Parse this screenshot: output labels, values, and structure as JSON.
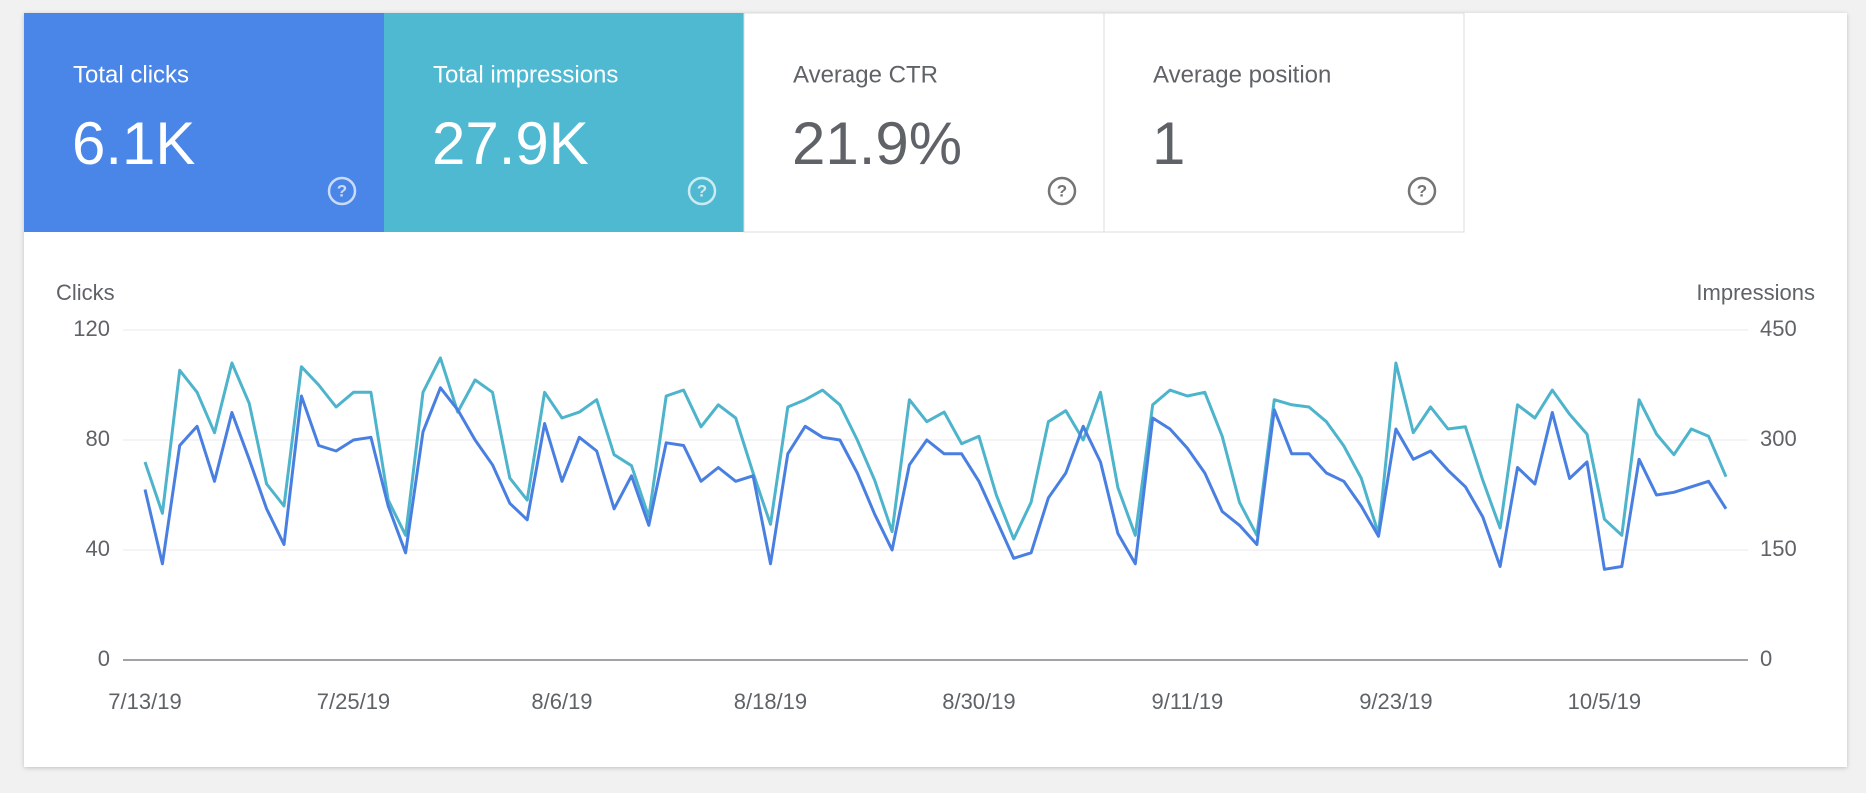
{
  "cards": [
    {
      "label": "Total clicks",
      "value": "6.1K"
    },
    {
      "label": "Total impressions",
      "value": "27.9K"
    },
    {
      "label": "Average CTR",
      "value": "21.9%"
    },
    {
      "label": "Average position",
      "value": "1"
    }
  ],
  "chart_data": {
    "type": "line",
    "categories": [
      "7/13/19",
      null,
      null,
      null,
      null,
      null,
      null,
      null,
      null,
      null,
      null,
      null,
      "7/25/19",
      null,
      null,
      null,
      null,
      null,
      null,
      null,
      null,
      null,
      null,
      null,
      "8/6/19",
      null,
      null,
      null,
      null,
      null,
      null,
      null,
      null,
      null,
      null,
      null,
      "8/18/19",
      null,
      null,
      null,
      null,
      null,
      null,
      null,
      null,
      null,
      null,
      null,
      "8/30/19",
      null,
      null,
      null,
      null,
      null,
      null,
      null,
      null,
      null,
      null,
      null,
      "9/11/19",
      null,
      null,
      null,
      null,
      null,
      null,
      null,
      null,
      null,
      null,
      null,
      "9/23/19",
      null,
      null,
      null,
      null,
      null,
      null,
      null,
      null,
      null,
      null,
      null,
      "10/5/19",
      null,
      null,
      null,
      null,
      null,
      null,
      null
    ],
    "series": [
      {
        "name": "Clicks",
        "color": "#4a7fe2",
        "values": [
          62,
          35,
          78,
          85,
          65,
          90,
          73,
          55,
          42,
          96,
          78,
          76,
          80,
          81,
          56,
          39,
          83,
          99,
          91,
          80,
          71,
          57,
          51,
          86,
          65,
          81,
          76,
          55,
          67,
          49,
          79,
          78,
          65,
          70,
          65,
          67,
          35,
          75,
          85,
          81,
          80,
          68,
          53,
          40,
          71,
          80,
          75,
          75,
          65,
          51,
          37,
          39,
          59,
          68,
          85,
          72,
          46,
          35,
          88,
          84,
          77,
          68,
          54,
          49,
          42,
          91,
          75,
          75,
          68,
          65,
          56,
          45,
          84,
          73,
          76,
          69,
          63,
          52,
          34,
          70,
          64,
          90,
          66,
          72,
          33,
          34,
          73,
          60,
          61,
          63,
          65,
          55
        ]
      },
      {
        "name": "Impressions",
        "color": "#4db4cb",
        "axis": "y2",
        "values": [
          270,
          200,
          395,
          365,
          310,
          405,
          350,
          240,
          210,
          400,
          375,
          345,
          365,
          365,
          218,
          170,
          365,
          412,
          338,
          382,
          365,
          248,
          218,
          365,
          330,
          338,
          355,
          280,
          265,
          195,
          360,
          368,
          318,
          348,
          330,
          255,
          185,
          345,
          355,
          368,
          348,
          300,
          245,
          175,
          355,
          325,
          338,
          295,
          305,
          225,
          165,
          215,
          325,
          340,
          300,
          365,
          235,
          170,
          348,
          368,
          360,
          365,
          305,
          215,
          170,
          355,
          348,
          345,
          325,
          292,
          248,
          172,
          405,
          310,
          345,
          315,
          318,
          245,
          180,
          348,
          330,
          368,
          335,
          308,
          192,
          170,
          355,
          308,
          280,
          315,
          305,
          250
        ]
      }
    ],
    "ylim": [
      0,
      120
    ],
    "yticks": [
      0,
      40,
      80,
      120
    ],
    "y2lim": [
      0,
      450
    ],
    "y2ticks": [
      0,
      150,
      300,
      450
    ],
    "grid": true
  }
}
